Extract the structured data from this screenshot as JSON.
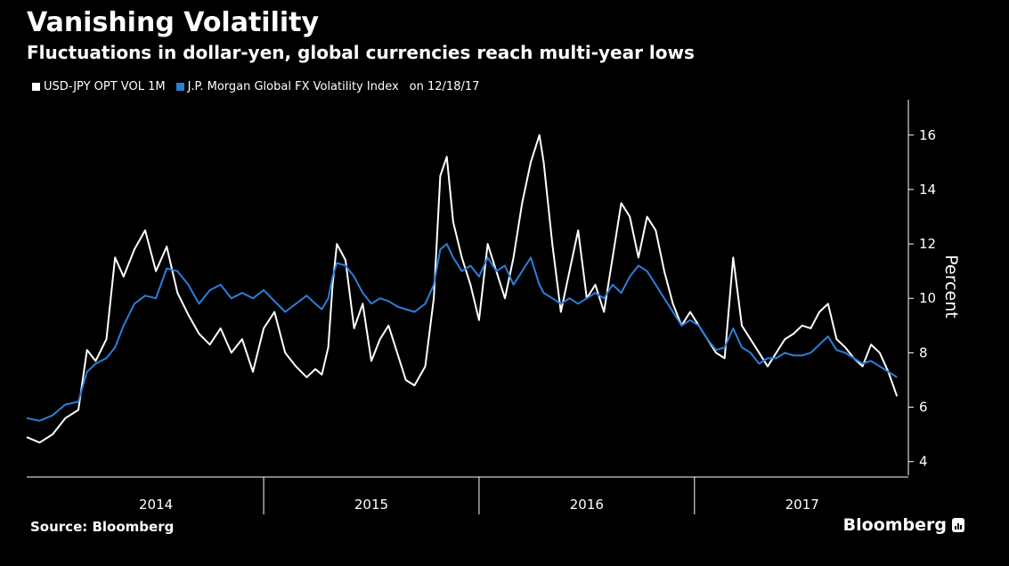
{
  "header": {
    "title": "Vanishing Volatility",
    "subtitle": "Fluctuations in dollar-yen, global currencies reach multi-year lows"
  },
  "legend": {
    "items": [
      {
        "label": "USD-JPY OPT VOL 1M",
        "color": "#ffffff"
      },
      {
        "label": "J.P. Morgan Global FX Volatility Index",
        "color": "#2b7fd9"
      }
    ],
    "date_note": "on 12/18/17"
  },
  "footer": {
    "source": "Source: Bloomberg",
    "brand": "Bloomberg",
    "brand_icon": "bloomberg-chart-icon"
  },
  "chart_data": {
    "type": "line",
    "ylabel": "Percent",
    "ylim": [
      3.5,
      17.3
    ],
    "xlim": [
      2013.9,
      2017.96
    ],
    "y_ticks": [
      4,
      6,
      8,
      10,
      12,
      14,
      16
    ],
    "x_ticks": [
      {
        "label": "2014",
        "center": 2014.5
      },
      {
        "label": "2015",
        "center": 2015.5
      },
      {
        "label": "2016",
        "center": 2016.5
      },
      {
        "label": "2017",
        "center": 2017.5
      }
    ],
    "year_separators": [
      2015,
      2016,
      2017
    ],
    "axis_position": "right",
    "grid": false,
    "series": [
      {
        "name": "USD-JPY OPT VOL 1M",
        "color": "#ffffff",
        "points": [
          [
            2013.9,
            4.9
          ],
          [
            2013.96,
            4.7
          ],
          [
            2014.02,
            5.0
          ],
          [
            2014.08,
            5.6
          ],
          [
            2014.14,
            5.9
          ],
          [
            2014.18,
            8.1
          ],
          [
            2014.22,
            7.7
          ],
          [
            2014.27,
            8.5
          ],
          [
            2014.31,
            11.5
          ],
          [
            2014.35,
            10.8
          ],
          [
            2014.4,
            11.8
          ],
          [
            2014.45,
            12.5
          ],
          [
            2014.5,
            11.0
          ],
          [
            2014.55,
            11.9
          ],
          [
            2014.6,
            10.2
          ],
          [
            2014.65,
            9.4
          ],
          [
            2014.7,
            8.7
          ],
          [
            2014.75,
            8.3
          ],
          [
            2014.8,
            8.9
          ],
          [
            2014.85,
            8.0
          ],
          [
            2014.9,
            8.5
          ],
          [
            2014.95,
            7.3
          ],
          [
            2015.0,
            8.9
          ],
          [
            2015.05,
            9.5
          ],
          [
            2015.1,
            8.0
          ],
          [
            2015.15,
            7.5
          ],
          [
            2015.2,
            7.1
          ],
          [
            2015.24,
            7.4
          ],
          [
            2015.27,
            7.2
          ],
          [
            2015.3,
            8.2
          ],
          [
            2015.32,
            10.5
          ],
          [
            2015.34,
            12.0
          ],
          [
            2015.38,
            11.4
          ],
          [
            2015.42,
            8.9
          ],
          [
            2015.46,
            9.8
          ],
          [
            2015.5,
            7.7
          ],
          [
            2015.54,
            8.5
          ],
          [
            2015.58,
            9.0
          ],
          [
            2015.62,
            8.0
          ],
          [
            2015.66,
            7.0
          ],
          [
            2015.7,
            6.8
          ],
          [
            2015.75,
            7.5
          ],
          [
            2015.79,
            10.0
          ],
          [
            2015.82,
            14.5
          ],
          [
            2015.85,
            15.2
          ],
          [
            2015.88,
            12.8
          ],
          [
            2015.92,
            11.5
          ],
          [
            2015.96,
            10.5
          ],
          [
            2016.0,
            9.2
          ],
          [
            2016.04,
            12.0
          ],
          [
            2016.08,
            11.0
          ],
          [
            2016.12,
            10.0
          ],
          [
            2016.16,
            11.5
          ],
          [
            2016.2,
            13.5
          ],
          [
            2016.24,
            15.0
          ],
          [
            2016.28,
            16.0
          ],
          [
            2016.3,
            15.0
          ],
          [
            2016.34,
            12.0
          ],
          [
            2016.38,
            9.5
          ],
          [
            2016.42,
            11.0
          ],
          [
            2016.46,
            12.5
          ],
          [
            2016.5,
            10.0
          ],
          [
            2016.54,
            10.5
          ],
          [
            2016.58,
            9.5
          ],
          [
            2016.62,
            11.5
          ],
          [
            2016.66,
            13.5
          ],
          [
            2016.7,
            13.0
          ],
          [
            2016.74,
            11.5
          ],
          [
            2016.78,
            13.0
          ],
          [
            2016.82,
            12.5
          ],
          [
            2016.86,
            11.0
          ],
          [
            2016.9,
            9.8
          ],
          [
            2016.94,
            9.0
          ],
          [
            2016.98,
            9.5
          ],
          [
            2017.02,
            9.0
          ],
          [
            2017.06,
            8.5
          ],
          [
            2017.1,
            8.0
          ],
          [
            2017.14,
            7.8
          ],
          [
            2017.18,
            11.5
          ],
          [
            2017.22,
            9.0
          ],
          [
            2017.26,
            8.5
          ],
          [
            2017.3,
            8.0
          ],
          [
            2017.34,
            7.5
          ],
          [
            2017.38,
            8.0
          ],
          [
            2017.42,
            8.5
          ],
          [
            2017.46,
            8.7
          ],
          [
            2017.5,
            9.0
          ],
          [
            2017.54,
            8.9
          ],
          [
            2017.58,
            9.5
          ],
          [
            2017.62,
            9.8
          ],
          [
            2017.66,
            8.5
          ],
          [
            2017.7,
            8.2
          ],
          [
            2017.74,
            7.8
          ],
          [
            2017.78,
            7.5
          ],
          [
            2017.82,
            8.3
          ],
          [
            2017.86,
            8.0
          ],
          [
            2017.9,
            7.3
          ],
          [
            2017.94,
            6.4
          ]
        ]
      },
      {
        "name": "J.P. Morgan Global FX Volatility Index",
        "color": "#2b7fd9",
        "points": [
          [
            2013.9,
            5.6
          ],
          [
            2013.96,
            5.5
          ],
          [
            2014.02,
            5.7
          ],
          [
            2014.08,
            6.1
          ],
          [
            2014.14,
            6.2
          ],
          [
            2014.18,
            7.3
          ],
          [
            2014.22,
            7.6
          ],
          [
            2014.27,
            7.8
          ],
          [
            2014.31,
            8.2
          ],
          [
            2014.35,
            9.0
          ],
          [
            2014.4,
            9.8
          ],
          [
            2014.45,
            10.1
          ],
          [
            2014.5,
            10.0
          ],
          [
            2014.55,
            11.1
          ],
          [
            2014.6,
            11.0
          ],
          [
            2014.65,
            10.5
          ],
          [
            2014.7,
            9.8
          ],
          [
            2014.75,
            10.3
          ],
          [
            2014.8,
            10.5
          ],
          [
            2014.85,
            10.0
          ],
          [
            2014.9,
            10.2
          ],
          [
            2014.95,
            10.0
          ],
          [
            2015.0,
            10.3
          ],
          [
            2015.05,
            9.9
          ],
          [
            2015.1,
            9.5
          ],
          [
            2015.15,
            9.8
          ],
          [
            2015.2,
            10.1
          ],
          [
            2015.24,
            9.8
          ],
          [
            2015.27,
            9.6
          ],
          [
            2015.3,
            10.0
          ],
          [
            2015.32,
            10.8
          ],
          [
            2015.34,
            11.3
          ],
          [
            2015.38,
            11.2
          ],
          [
            2015.42,
            10.8
          ],
          [
            2015.46,
            10.2
          ],
          [
            2015.5,
            9.8
          ],
          [
            2015.54,
            10.0
          ],
          [
            2015.58,
            9.9
          ],
          [
            2015.62,
            9.7
          ],
          [
            2015.66,
            9.6
          ],
          [
            2015.7,
            9.5
          ],
          [
            2015.75,
            9.8
          ],
          [
            2015.79,
            10.5
          ],
          [
            2015.82,
            11.8
          ],
          [
            2015.85,
            12.0
          ],
          [
            2015.88,
            11.5
          ],
          [
            2015.92,
            11.0
          ],
          [
            2015.96,
            11.2
          ],
          [
            2016.0,
            10.8
          ],
          [
            2016.04,
            11.5
          ],
          [
            2016.08,
            11.0
          ],
          [
            2016.12,
            11.2
          ],
          [
            2016.16,
            10.5
          ],
          [
            2016.2,
            11.0
          ],
          [
            2016.24,
            11.5
          ],
          [
            2016.28,
            10.5
          ],
          [
            2016.3,
            10.2
          ],
          [
            2016.34,
            10.0
          ],
          [
            2016.38,
            9.8
          ],
          [
            2016.42,
            10.0
          ],
          [
            2016.46,
            9.8
          ],
          [
            2016.5,
            10.0
          ],
          [
            2016.54,
            10.2
          ],
          [
            2016.58,
            10.0
          ],
          [
            2016.62,
            10.5
          ],
          [
            2016.66,
            10.2
          ],
          [
            2016.7,
            10.8
          ],
          [
            2016.74,
            11.2
          ],
          [
            2016.78,
            11.0
          ],
          [
            2016.82,
            10.5
          ],
          [
            2016.86,
            10.0
          ],
          [
            2016.9,
            9.5
          ],
          [
            2016.94,
            9.0
          ],
          [
            2016.98,
            9.2
          ],
          [
            2017.02,
            9.0
          ],
          [
            2017.06,
            8.5
          ],
          [
            2017.1,
            8.1
          ],
          [
            2017.14,
            8.2
          ],
          [
            2017.18,
            8.9
          ],
          [
            2017.22,
            8.2
          ],
          [
            2017.26,
            8.0
          ],
          [
            2017.3,
            7.6
          ],
          [
            2017.34,
            7.8
          ],
          [
            2017.38,
            7.8
          ],
          [
            2017.42,
            8.0
          ],
          [
            2017.46,
            7.9
          ],
          [
            2017.5,
            7.9
          ],
          [
            2017.54,
            8.0
          ],
          [
            2017.58,
            8.3
          ],
          [
            2017.62,
            8.6
          ],
          [
            2017.66,
            8.1
          ],
          [
            2017.7,
            8.0
          ],
          [
            2017.74,
            7.8
          ],
          [
            2017.78,
            7.6
          ],
          [
            2017.82,
            7.7
          ],
          [
            2017.86,
            7.5
          ],
          [
            2017.9,
            7.3
          ],
          [
            2017.94,
            7.1
          ]
        ]
      }
    ]
  }
}
